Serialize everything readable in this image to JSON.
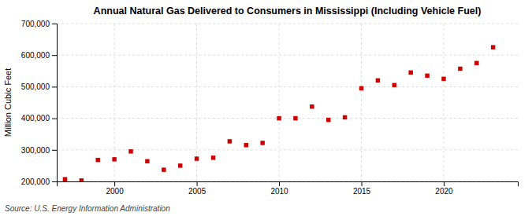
{
  "chart_data": {
    "type": "scatter",
    "title": "Annual Natural Gas Delivered to Consumers in Mississippi (Including Vehicle Fuel)",
    "y_label": "Million Cubic Feet",
    "source": "Source: U.S. Energy Information Administration",
    "x": [
      1997,
      1998,
      1999,
      2000,
      2001,
      2002,
      2003,
      2004,
      2005,
      2006,
      2007,
      2008,
      2009,
      2010,
      2011,
      2012,
      2013,
      2014,
      2015,
      2016,
      2017,
      2018,
      2019,
      2020,
      2021,
      2022,
      2023
    ],
    "values": [
      207000,
      203000,
      268000,
      270000,
      295000,
      264000,
      237000,
      250000,
      272000,
      275000,
      327000,
      315000,
      322000,
      400000,
      400000,
      437000,
      395000,
      403000,
      495000,
      520000,
      505000,
      545000,
      535000,
      525000,
      557000,
      575000,
      625000
    ],
    "color": "#cc0000",
    "marker": "square",
    "xlim": [
      1996.5,
      2024.5
    ],
    "xticks": [
      2000,
      2005,
      2010,
      2015,
      2020
    ],
    "ylim": [
      200000,
      700000
    ],
    "yticks": [
      {
        "value": 200000,
        "label": "200,000"
      },
      {
        "value": 300000,
        "label": "300,000"
      },
      {
        "value": 400000,
        "label": "400,000"
      },
      {
        "value": 500000,
        "label": "500,000"
      },
      {
        "value": 600000,
        "label": "600,000"
      },
      {
        "value": 700000,
        "label": "700,000"
      }
    ],
    "grid": true
  }
}
